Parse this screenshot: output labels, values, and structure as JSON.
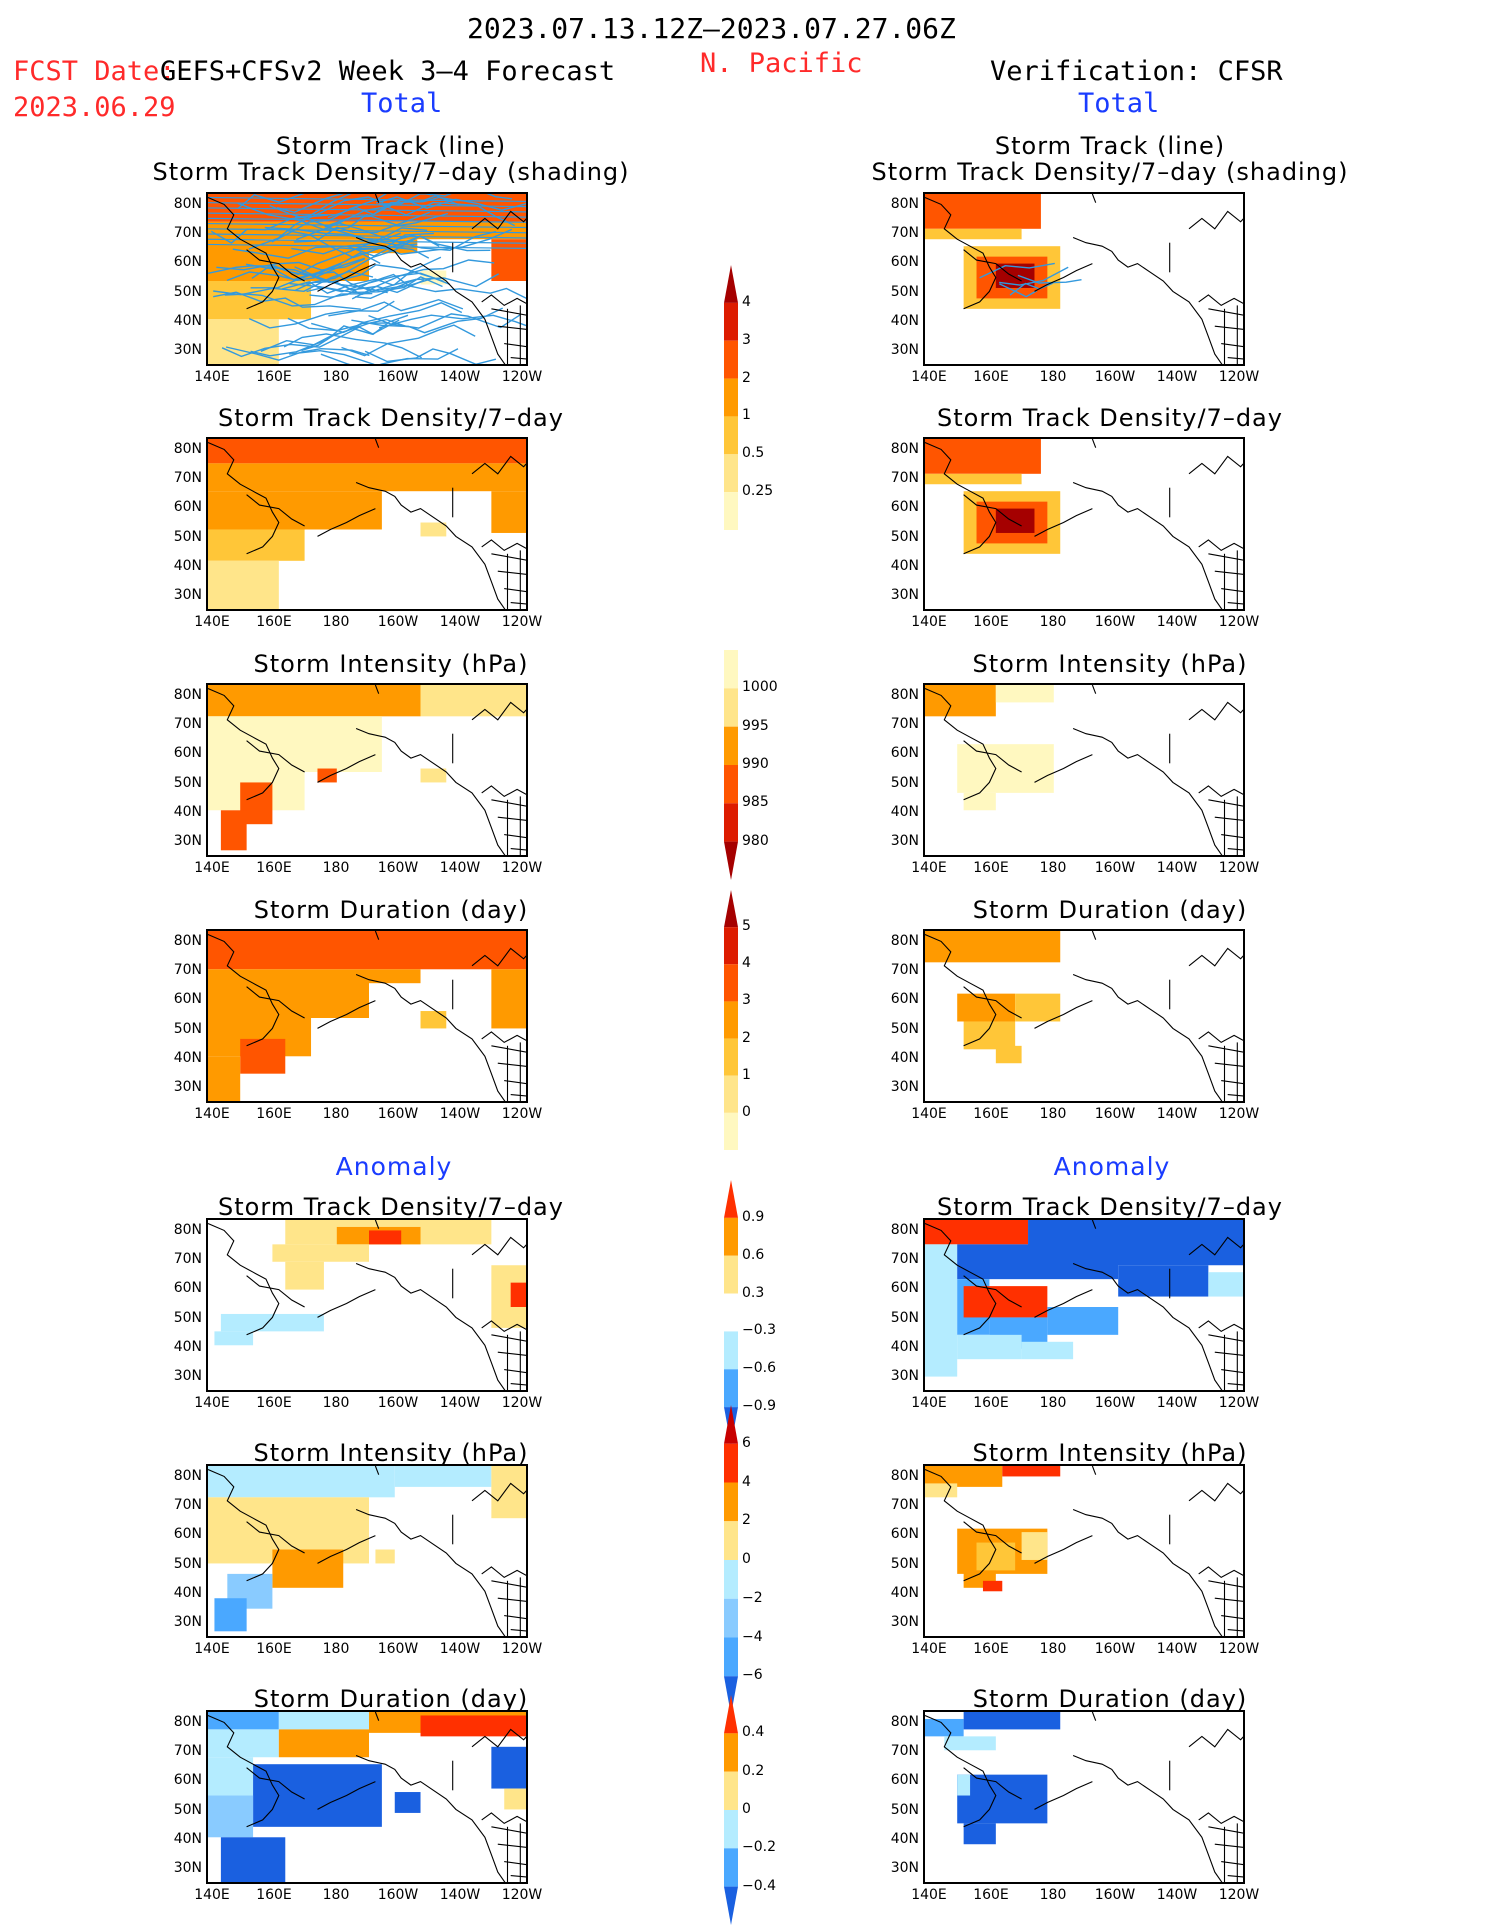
{
  "header": {
    "period": "2023.07.13.12Z–2023.07.27.06Z",
    "fcst_label": "FCST Date:",
    "fcst_model": "GEFS+CFSv2 Week 3–4 Forecast",
    "fcst_date": "2023.06.29",
    "region": "N. Pacific",
    "verification": "Verification: CFSR"
  },
  "sections": {
    "total_left": "Total",
    "total_right": "Total",
    "anomaly_left": "Anomaly",
    "anomaly_right": "Anomaly"
  },
  "titles": {
    "track_line": "Storm Track (line)",
    "track_shading": "Storm Track Density/7–day (shading)",
    "density": "Storm Track Density/7–day",
    "intensity": "Storm Intensity (hPa)",
    "duration": "Storm Duration (day)"
  },
  "axes": {
    "lat_labels": [
      "80N",
      "70N",
      "60N",
      "50N",
      "40N",
      "30N"
    ],
    "lon_labels": [
      "140E",
      "160E",
      "180",
      "160W",
      "140W",
      "120W"
    ]
  },
  "colorbars": {
    "density_total": {
      "labels": [
        "4",
        "3",
        "2",
        "1",
        "0.5",
        "0.25"
      ],
      "colors": [
        "#a50000",
        "#dd1c00",
        "#ff5500",
        "#ff9a00",
        "#ffc638",
        "#ffe58a",
        "#fff8c0"
      ]
    },
    "intensity_total": {
      "labels": [
        "1000",
        "995",
        "990",
        "985",
        "980"
      ],
      "colors": [
        "#fff8c0",
        "#ffe58a",
        "#ff9a00",
        "#ff5500",
        "#dd1c00",
        "#a50000"
      ]
    },
    "duration_total": {
      "labels": [
        "5",
        "4",
        "3",
        "2",
        "1",
        "0"
      ],
      "colors": [
        "#a50000",
        "#dd1c00",
        "#ff5500",
        "#ff9a00",
        "#ffc638",
        "#ffe58a",
        "#fff8c0"
      ]
    },
    "density_anom": {
      "labels": [
        "0.9",
        "0.6",
        "0.3",
        "−0.3",
        "−0.6",
        "−0.9"
      ],
      "colors": [
        "#ff3000",
        "#ff9a00",
        "#ffe58a",
        "#ffffff",
        "#b4ecff",
        "#4aa8ff",
        "#1a60e0"
      ]
    },
    "intensity_anom": {
      "labels": [
        "6",
        "4",
        "2",
        "0",
        "−2",
        "−4",
        "−6"
      ],
      "colors": [
        "#c80000",
        "#ff3000",
        "#ff9a00",
        "#ffe58a",
        "#b4ecff",
        "#89cbff",
        "#4aa8ff",
        "#1a60e0"
      ]
    },
    "duration_anom": {
      "labels": [
        "0.4",
        "0.2",
        "0",
        "−0.2",
        "−0.4"
      ],
      "colors": [
        "#ff3000",
        "#ff9a00",
        "#ffe58a",
        "#b4ecff",
        "#4aa8ff",
        "#1a60e0"
      ]
    }
  },
  "colors": {
    "red_text": "#ff2a2a",
    "blue_text": "#1a3cff",
    "track_line": "#3399dd"
  }
}
